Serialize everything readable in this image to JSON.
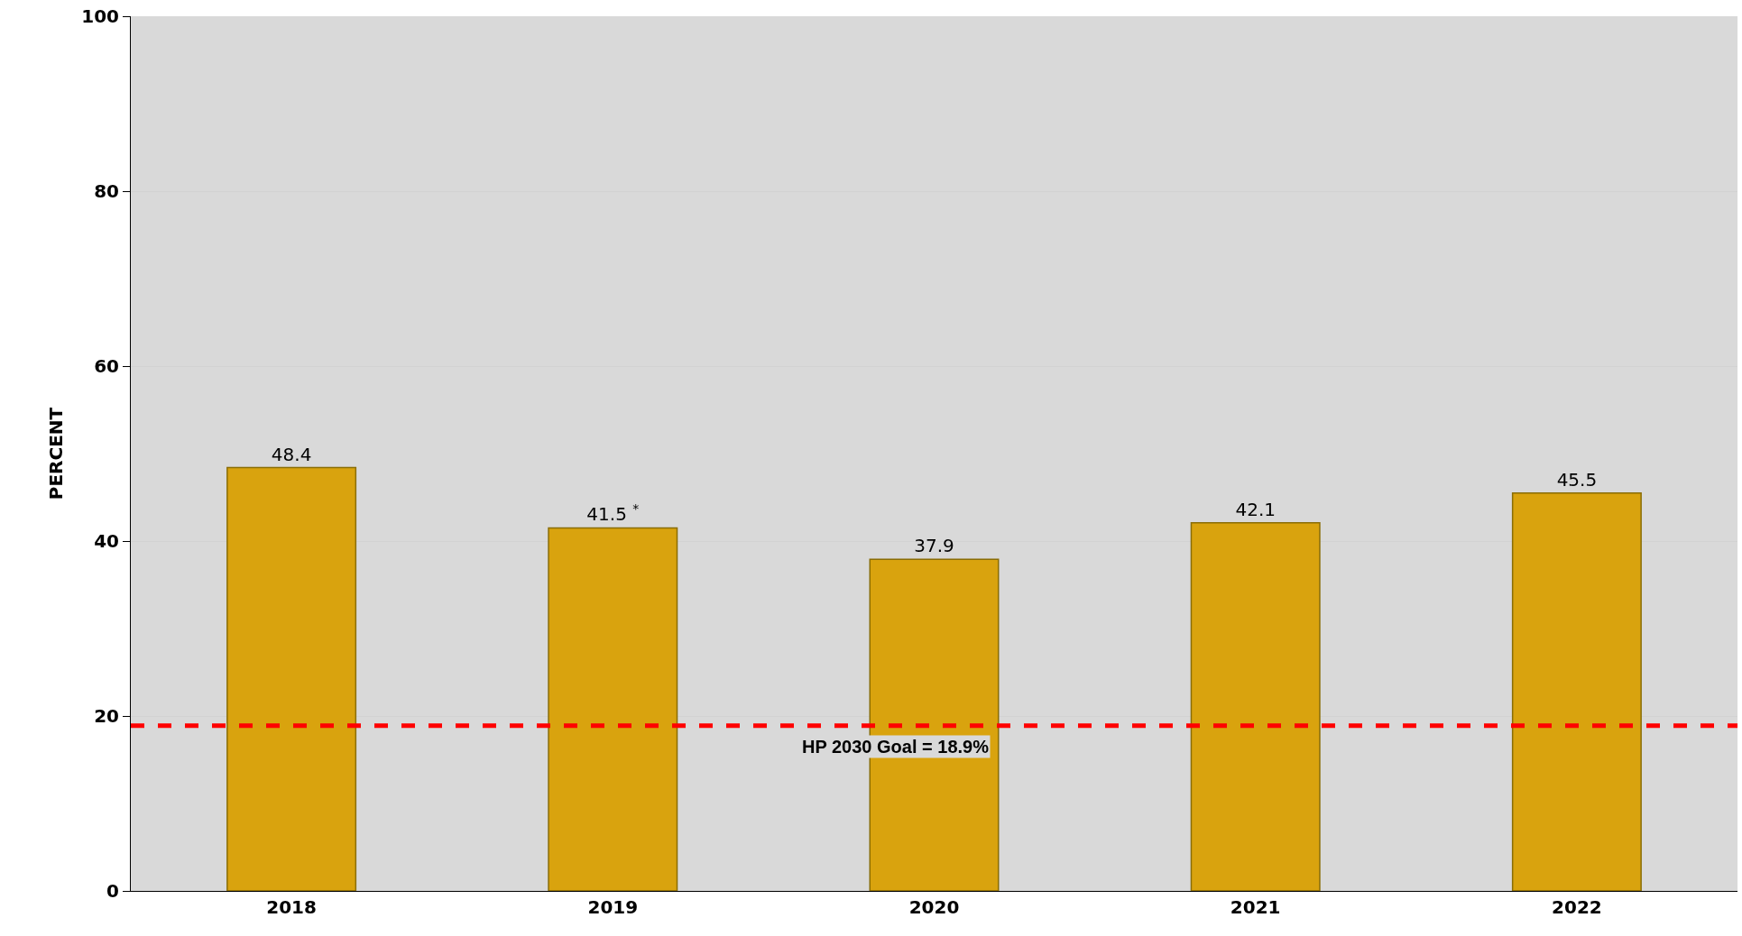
{
  "chart_data": {
    "type": "bar",
    "ylabel": "PERCENT",
    "categories": [
      "2018",
      "2019",
      "2020",
      "2021",
      "2022"
    ],
    "values": [
      48.4,
      41.5,
      37.9,
      42.1,
      45.5
    ],
    "value_labels": [
      "48.4",
      "41.5 $^{*}$",
      "37.9",
      "42.1",
      "45.5"
    ],
    "color": "#d9a30e",
    "ylim": [
      0,
      100
    ],
    "yticks": [
      0,
      20,
      40,
      60,
      80,
      100
    ],
    "grid": "y",
    "ref_lines": [
      {
        "axis": "y",
        "value": 18.9,
        "label": "HP 2030 Goal = 18.9%",
        "color": "#ff0000",
        "line_style": "dashed"
      }
    ]
  }
}
